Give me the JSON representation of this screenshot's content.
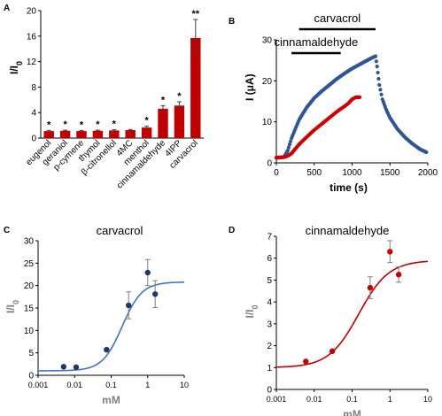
{
  "chart_data": [
    {
      "panel": "A",
      "type": "bar",
      "ylabel_main": "I/I",
      "ylabel_sub": "0",
      "ylim": [
        0,
        20
      ],
      "yticks": [
        0,
        4,
        8,
        12,
        16,
        20
      ],
      "categories": [
        "eugenol",
        "geraniol",
        "p-cymene",
        "thymol",
        "β-citronellol",
        "4MC",
        "menthol",
        "cinnamaldehyde",
        "4IPP",
        "carvacrol"
      ],
      "values": [
        1.1,
        1.15,
        1.1,
        1.15,
        1.2,
        1.25,
        1.65,
        4.6,
        5.1,
        15.7
      ],
      "errors": [
        0.1,
        0.1,
        0.1,
        0.1,
        0.1,
        0.1,
        0.2,
        0.5,
        0.6,
        2.9
      ],
      "stars": [
        "*",
        "*",
        "*",
        "*",
        "*",
        "",
        "*",
        "*",
        "*",
        "**"
      ],
      "color": "#c00000"
    },
    {
      "panel": "B",
      "type": "scatter",
      "xlabel": "time (s)",
      "ylabel": "I (μA)",
      "xlim": [
        0,
        2000
      ],
      "ylim": [
        0,
        30
      ],
      "xticks": [
        0,
        500,
        1000,
        1500,
        2000
      ],
      "yticks": [
        0,
        10,
        20,
        30
      ],
      "annotations": [
        {
          "text": "carvacrol",
          "start": 300,
          "end": 1310
        },
        {
          "text": "cinnamaldehyde",
          "start": 200,
          "end": 850
        }
      ],
      "series": [
        {
          "color": "#2f5597",
          "x": [
            0,
            100,
            150,
            200,
            300,
            400,
            500,
            600,
            700,
            800,
            900,
            1000,
            1100,
            1200,
            1260,
            1310,
            1330,
            1360,
            1400,
            1450,
            1500,
            1600,
            1700,
            1800,
            1900,
            1980
          ],
          "y": [
            1.2,
            1.4,
            3.0,
            6.0,
            10.5,
            13.5,
            15.8,
            17.5,
            19.0,
            20.5,
            21.8,
            23.0,
            24.0,
            25.0,
            25.6,
            26.0,
            23.5,
            19.0,
            15.5,
            13.0,
            11.0,
            8.2,
            6.2,
            4.6,
            3.3,
            2.6
          ]
        },
        {
          "color": "#cc0000",
          "x": [
            0,
            100,
            150,
            200,
            250,
            300,
            400,
            500,
            600,
            700,
            800,
            900,
            950,
            1000,
            1050,
            1100
          ],
          "y": [
            1.3,
            1.4,
            1.7,
            2.3,
            3.4,
            4.5,
            6.3,
            8.0,
            9.5,
            11.0,
            12.5,
            13.8,
            14.5,
            15.5,
            16.0,
            16.0
          ]
        }
      ]
    },
    {
      "panel": "C",
      "type": "scatter",
      "title": "carvacrol",
      "xlabel": "mM",
      "ylabel_main": "I/I",
      "ylabel_sub": "0",
      "xscale": "log",
      "xlim": [
        0.001,
        10
      ],
      "ylim": [
        0,
        30
      ],
      "xticks": [
        "0.001",
        "0.01",
        "0.1",
        "1",
        "10"
      ],
      "yticks": [
        0,
        5,
        10,
        15,
        20,
        25,
        30
      ],
      "points": {
        "x": [
          0.005,
          0.011,
          0.075,
          0.3,
          1.0,
          1.6
        ],
        "y": [
          1.9,
          1.8,
          5.7,
          15.6,
          22.9,
          18.1
        ],
        "err": [
          0,
          0,
          0.3,
          3.0,
          2.9,
          3.0
        ]
      },
      "fit": {
        "bottom": 1.0,
        "top": 20.8,
        "ec50": 0.2,
        "hill": 1.6
      },
      "point_color": "#1f3864",
      "line_color": "#4472c4"
    },
    {
      "panel": "D",
      "type": "scatter",
      "title": "cinnamaldehyde",
      "xlabel": "mM",
      "ylabel_main": "I/I",
      "ylabel_sub": "0",
      "xscale": "log",
      "xlim": [
        0.001,
        10
      ],
      "ylim": [
        0,
        7
      ],
      "xticks": [
        "0.001",
        "0.01",
        "0.1",
        "1",
        "10"
      ],
      "yticks": [
        0,
        1,
        2,
        3,
        4,
        5,
        6,
        7
      ],
      "points": {
        "x": [
          0.006,
          0.03,
          0.3,
          1.0,
          1.7
        ],
        "y": [
          1.28,
          1.75,
          4.65,
          6.3,
          5.25
        ],
        "err": [
          0,
          0,
          0.5,
          0.5,
          0.35
        ]
      },
      "fit": {
        "bottom": 1.0,
        "top": 5.9,
        "ec50": 0.15,
        "hill": 1.1
      },
      "point_color": "#c00000",
      "line_color": "#c00000"
    }
  ]
}
